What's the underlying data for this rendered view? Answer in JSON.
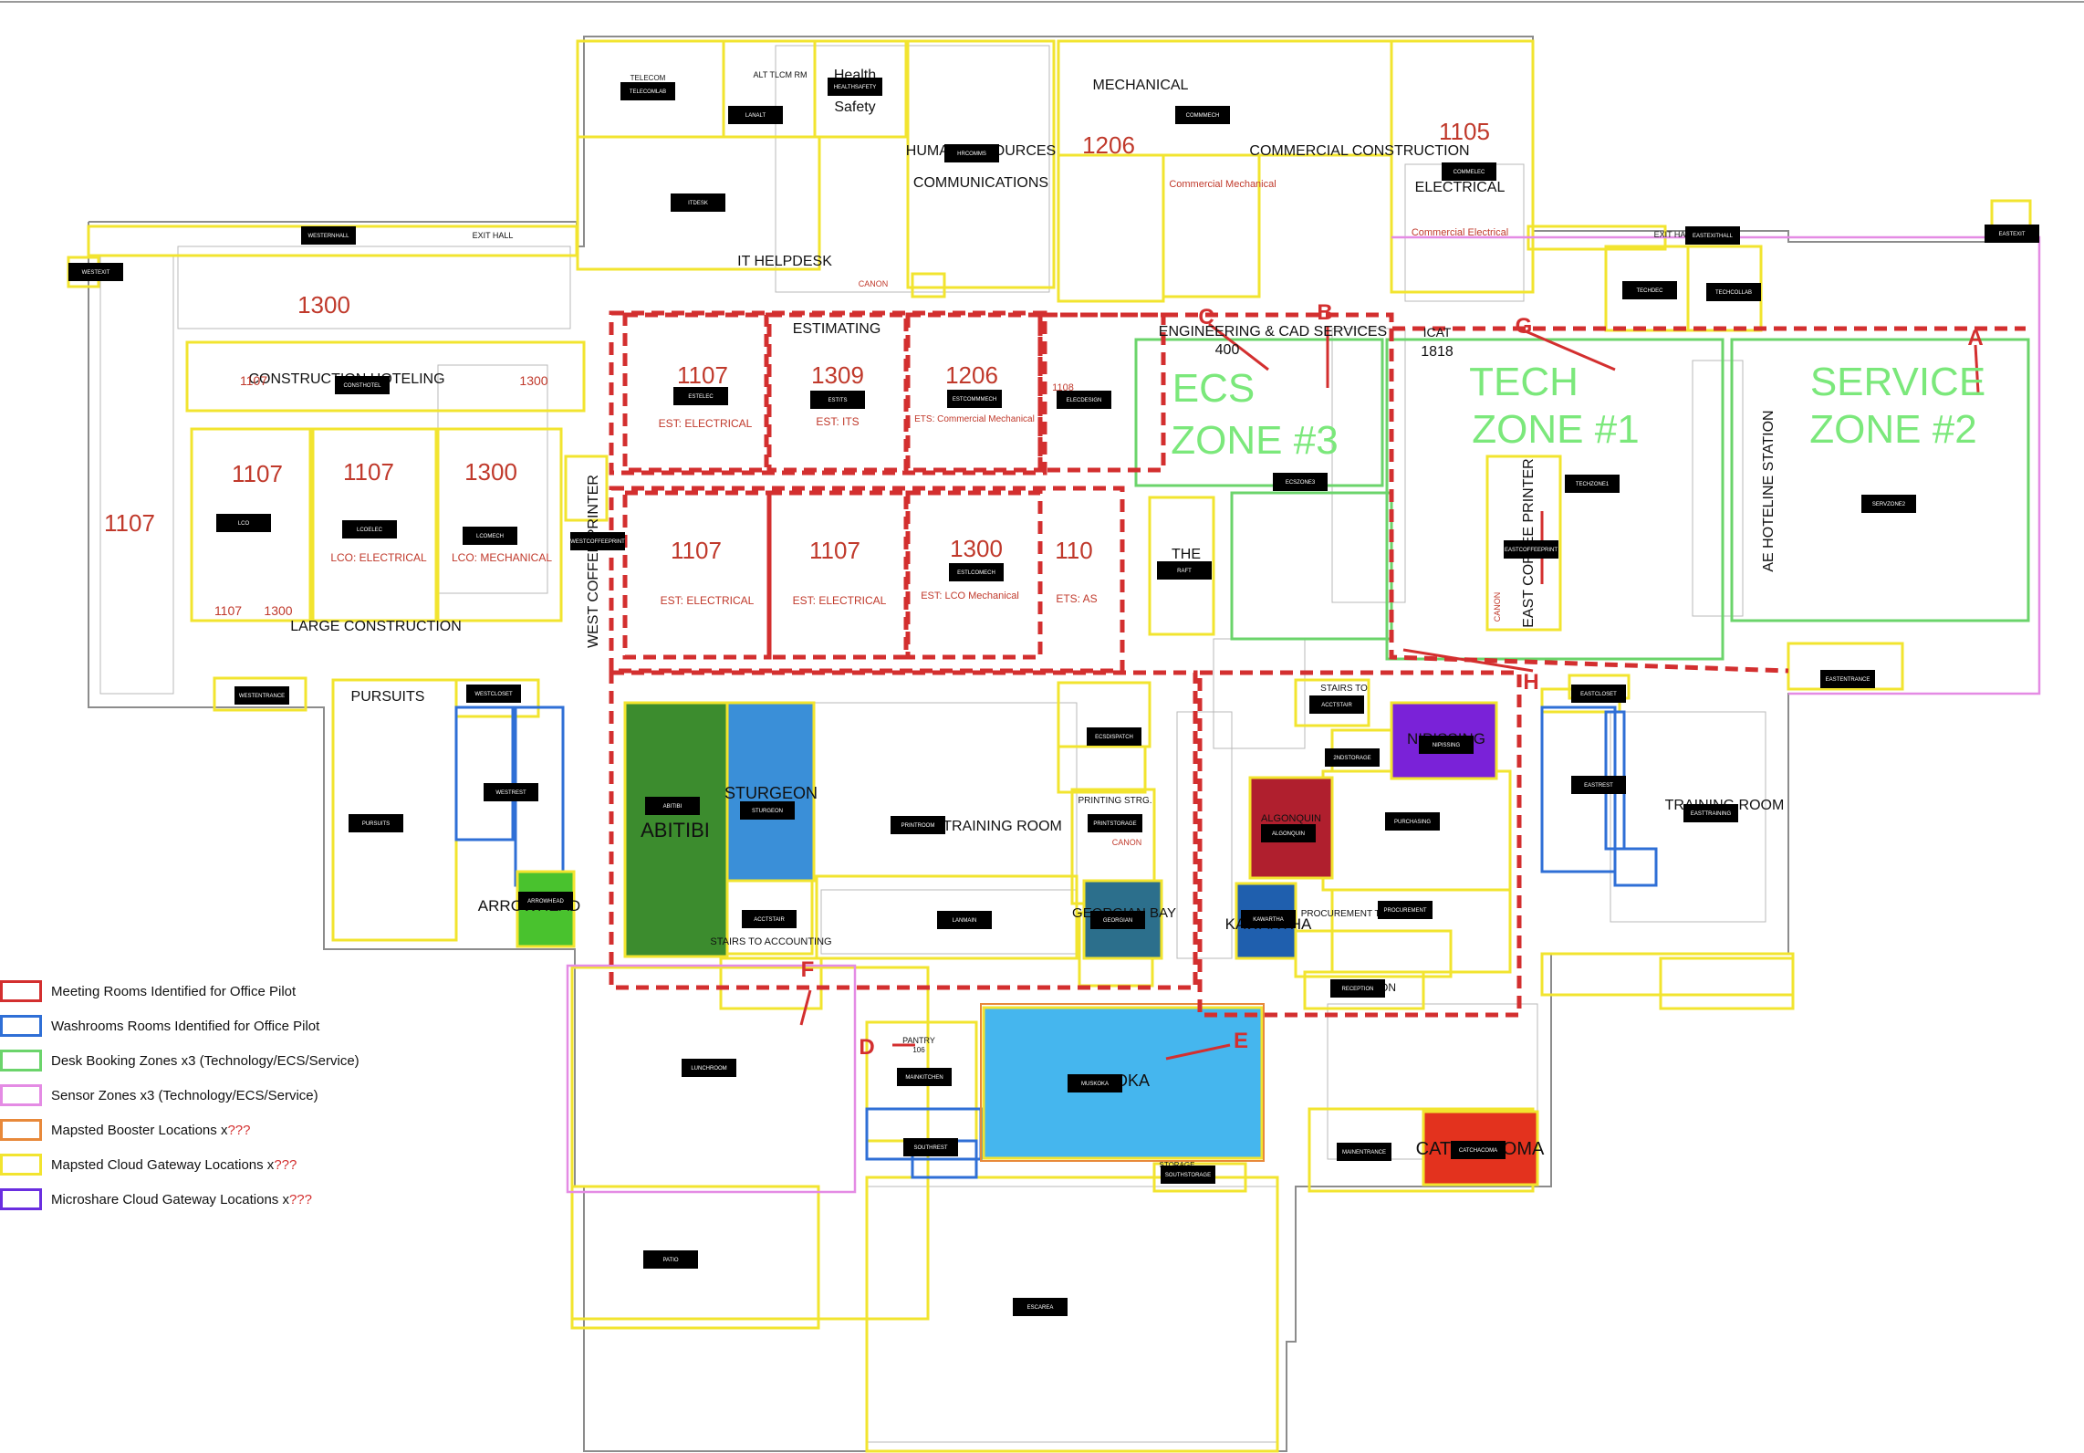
{
  "areas": {
    "west_wing": "LARGE CONSTRUCTION",
    "construction_hoteling": "CONSTRUCTION HOTELING",
    "it_helpdesk": "IT HELPDESK",
    "human_resources": "HUMAN RESOURCES",
    "communications": "COMMUNICATIONS",
    "mechanical": "MECHANICAL",
    "commercial_construction": "COMMERCIAL CONSTRUCTION",
    "electrical": "ELECTRICAL",
    "estimating": "ESTIMATING",
    "engineering_cad": "ENGINEERING & CAD SERVICES",
    "pursuits": "PURSUITS",
    "health_safety_1": "Health",
    "health_safety_2": "Safety",
    "west_coffee_printer": "WEST COFFEE PRINTER",
    "east_coffee_printer": "EAST COFFEE PRINTER",
    "ae_hoteline": "AE HOTELINE STATION",
    "training_room": "TRAINING ROOM",
    "ecs_training_room": "ECS TRAINING ROOM",
    "stairs_accounting": "STAIRS TO ACCOUNTING",
    "printing_strg": "PRINTING STRG.",
    "procurement_team": "PROCUREMENT TEAM",
    "exit_hall_w": "EXIT HALL",
    "exit_hall_e": "EXIT HALL",
    "alt_tlcm_rm": "ALT TLCM RM",
    "telecom": "TELECOM",
    "stairs_to": "STAIRS TO",
    "pantry": "PANTRY",
    "storage": "STORAGE",
    "canon_1": "CANON",
    "canon_2": "CANON",
    "canon_3": "CANON",
    "reception": "RECEPTION",
    "the_label": "THE"
  },
  "rooms": {
    "abitibi": "ABITIBI",
    "sturgeon": "STURGEON",
    "arrowhead": "ARROWHEAD",
    "georgian": "GEORGIAN BAY",
    "kawartha": "KAWARTHA",
    "nipissing": "NIPISSING",
    "muskoka": "MUSKOKA",
    "algonquin": "ALGONQUIN",
    "catchacoma": "CATCHACOMA"
  },
  "numbers": {
    "n1300_a": "1300",
    "n1107_hotel": "1107",
    "n1300_hotel": "1300",
    "n1107_a": "1107",
    "n1107_b": "1107",
    "n1300_b": "1300",
    "n1107_west": "1107",
    "n1107_small": "1107",
    "n1300_small": "1300",
    "n1206_top": "1206",
    "n1105": "1105",
    "n1107_est": "1107",
    "n1309": "1309",
    "n1206_est": "1206",
    "n1107_est2": "1107",
    "n1107_est3": "1107",
    "n1300_est": "1300",
    "n1108": "1108",
    "n110x": "110",
    "n400": "400",
    "n1818": "1818",
    "icat": "ICAT",
    "room_106": "106"
  },
  "sublabels": {
    "lco_electrical": "LCO: ELECTRICAL",
    "lco_mechanical": "LCO: MECHANICAL",
    "est_electrical": "EST: ELECTRICAL",
    "est_its": "EST: ITS",
    "ets_commercial": "ETS: Commercial Mechanical",
    "est_electrical2": "EST: ELECTRICAL",
    "est_electrical3": "EST: ELECTRICAL",
    "est_lco": "EST: LCO Mechanical",
    "ets_as": "ETS: AS",
    "commercial_mechanical": "Commercial Mechanical",
    "commercial_electrical": "Commercial Electrical"
  },
  "zones": {
    "ecs_1": "ECS",
    "ecs_2": "ZONE #3",
    "tech_1": "TECH",
    "tech_2": "ZONE #1",
    "service_1": "SERVICE",
    "service_2": "ZONE #2"
  },
  "markers": {
    "A": "A",
    "B": "B",
    "C": "C",
    "D": "D",
    "E": "E",
    "F": "F",
    "G": "G",
    "H": "H"
  },
  "gateway_tags": {
    "telecomlab": "TELECOMLAB",
    "lanalt": "LANALT",
    "healthsafety": "HEALTHSAFETY",
    "hrcomms": "HRCOMMS",
    "commmech": "COMMMECH",
    "commelec": "COMMELEC",
    "itdesk": "ITDESK",
    "westerthall": "WESTERNHALL",
    "westexit": "WESTEXIT",
    "consthotel": "CONSTHOTEL",
    "lco": "LCO",
    "lcoelec": "LCOELEC",
    "lcomech": "LCOMECH",
    "westcoffeeprint": "WESTCOFFEEPRINT",
    "estelec": "ESTELEC",
    "estits": "ESTITS",
    "estcommmech": "ESTCOMMMECH",
    "elecdesign": "ELECDESIGN",
    "estlcomech": "ESTLCOMECH",
    "raft": "RAFT",
    "ecszone3": "ECSZONE3",
    "eastexithall": "EASTEXITHALL",
    "eastexit": "EASTEXIT",
    "techdec": "TECHDEC",
    "techcollab": "TECHCOLLAB",
    "techzone1": "TECHZONE1",
    "servzone2": "SERVZONE2",
    "eastcoffeeprint": "EASTCOFFEEPRINT",
    "westentrance": "WESTENTRANCE",
    "westcloset": "WESTCLOSET",
    "westrest": "WESTREST",
    "pursuits": "PURSUITS",
    "arrowhead": "ARROWHEAD",
    "abitibi": "ABITIBI",
    "sturgeon": "STURGEON",
    "printroom": "PRINTROOM",
    "ecsdispatch": "ECSDISPATCH",
    "printstorage": "PRINTSTORAGE",
    "acctstair": "ACCTSTAIR",
    "lanmain": "LANMAIN",
    "georgian": "GEORGIAN",
    "acctstair2": "ACCTSTAIR",
    "2ndstorage": "2NDSTORAGE",
    "nipissing": "NIPISSING",
    "algonquin": "ALGONQUIN",
    "purchasing": "PURCHASING",
    "kawartha": "KAWARTHA",
    "procurement": "PROCUREMENT",
    "reception": "RECEPTION",
    "eastcloset": "EASTCLOSET",
    "eastentrance": "EASTENTRANCE",
    "eastrest": "EASTREST",
    "easttraining": "EASTTRAINING",
    "lunchroom": "LUNCHROOM",
    "mainkitchen": "MAINKITCHEN",
    "muskoka": "MUSKOKA",
    "southrest": "SOUTHREST",
    "southstorage": "SOUTHSTORAGE",
    "mainentrance": "MAINENTRANCE",
    "catchacoma": "CATCHACOMA",
    "patio": "PATIO",
    "escarea": "ESCAREA"
  },
  "legend": [
    {
      "label": "Meeting Rooms Identified for Office Pilot",
      "suffix": "",
      "color": "#d32f2f"
    },
    {
      "label": "Washrooms Rooms Identified for Office Pilot",
      "suffix": "",
      "color": "#2f6fd6"
    },
    {
      "label": "Desk Booking Zones x3 (Technology/ECS/Service)",
      "suffix": "",
      "color": "#6bd46b"
    },
    {
      "label": "Sensor Zones x3 (Technology/ECS/Service)",
      "suffix": "",
      "color": "#e48be4"
    },
    {
      "label": "Mapsted Booster Locations x",
      "suffix": "???",
      "color": "#e8893a"
    },
    {
      "label": "Mapsted Cloud Gateway Locations x",
      "suffix": "???",
      "color": "#f2e42f"
    },
    {
      "label": "Microshare Cloud Gateway Locations x",
      "suffix": "???",
      "color": "#6a2ee0"
    }
  ],
  "colors": {
    "meeting": "#d32f2f",
    "washroom": "#2f6fd6",
    "desk_zone": "#6bd46b",
    "sensor_zone": "#e48be4",
    "booster": "#e8893a",
    "gateway": "#f2e42f",
    "microshare": "#6a2ee0",
    "abitibi": "#3c8c2e",
    "sturgeon": "#3a8fd8",
    "algonquin": "#b01f2e",
    "kawartha": "#1f5fae",
    "georgian": "#2c6f8c",
    "nipissing": "#7a22d8",
    "muskoka": "#45b6ee",
    "catchacoma": "#e3321e",
    "arrowhead": "#49c22e"
  }
}
